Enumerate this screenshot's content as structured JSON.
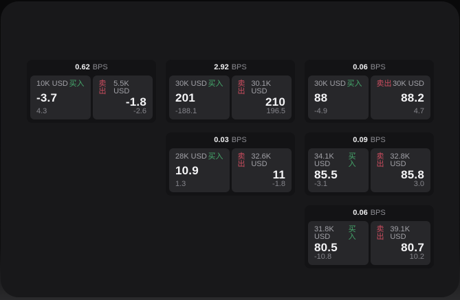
{
  "labels": {
    "buy_action": "买入",
    "sell_action": "卖出",
    "bps_unit": "BPS"
  },
  "colors": {
    "buy": "#45a86b",
    "sell": "#cc4d5f",
    "window_bg": "#18181a",
    "card_bg": "#131315",
    "panel_bg": "#27272a"
  },
  "cards": [
    {
      "bps": "0.62",
      "row": 1,
      "col": 1,
      "buy": {
        "size": "10K USD",
        "value": "-3.7",
        "delta": "4.3"
      },
      "sell": {
        "size": "5.5K USD",
        "value": "-1.8",
        "delta": "-2.6"
      }
    },
    {
      "bps": "2.92",
      "row": 1,
      "col": 2,
      "buy": {
        "size": "30K USD",
        "value": "201",
        "delta": "-188.1"
      },
      "sell": {
        "size": "30.1K USD",
        "value": "210",
        "delta": "196.5"
      }
    },
    {
      "bps": "0.06",
      "row": 1,
      "col": 3,
      "buy": {
        "size": "30K USD",
        "value": "88",
        "delta": "-4.9"
      },
      "sell": {
        "size": "30K USD",
        "value": "88.2",
        "delta": "4.7"
      }
    },
    {
      "bps": "0.03",
      "row": 2,
      "col": 2,
      "buy": {
        "size": "28K USD",
        "value": "10.9",
        "delta": "1.3"
      },
      "sell": {
        "size": "32.6K USD",
        "value": "11",
        "delta": "-1.8"
      }
    },
    {
      "bps": "0.09",
      "row": 2,
      "col": 3,
      "buy": {
        "size": "34.1K USD",
        "value": "85.5",
        "delta": "-3.1"
      },
      "sell": {
        "size": "32.8K USD",
        "value": "85.8",
        "delta": "3.0"
      }
    },
    {
      "bps": "0.06",
      "row": 3,
      "col": 3,
      "buy": {
        "size": "31.8K USD",
        "value": "80.5",
        "delta": "-10.8"
      },
      "sell": {
        "size": "39.1K USD",
        "value": "80.7",
        "delta": "10.2"
      }
    }
  ]
}
